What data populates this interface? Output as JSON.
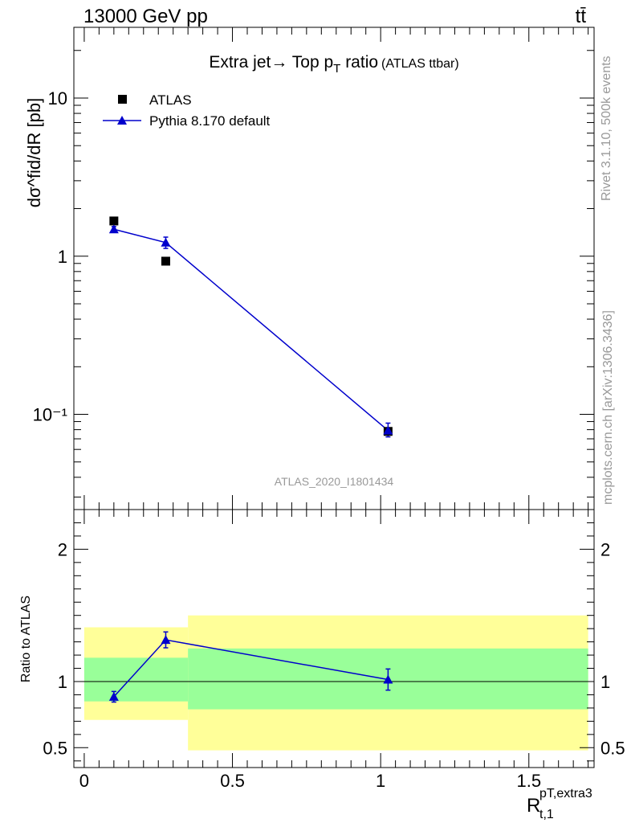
{
  "header": {
    "left_label": "13000 GeV pp",
    "right_label": "tt̄"
  },
  "side_labels": {
    "rivet": "Rivet 3.1.10,  500k events",
    "source": "mcplots.cern.ch [arXiv:1306.3436]"
  },
  "chart_data": [
    {
      "panel": "main",
      "type": "scatter",
      "title": "Extra jet→ Top p_T ratio",
      "title_suffix": "(ATLAS ttbar)",
      "ylabel": "dσ^fid/dR [pb]",
      "yscale": "log",
      "ylim": [
        0.025,
        28
      ],
      "xlim": [
        -0.035,
        1.72
      ],
      "yticks": [
        {
          "value": 0.1,
          "label": "10⁻¹"
        },
        {
          "value": 1,
          "label": "1"
        },
        {
          "value": 10,
          "label": "10"
        }
      ],
      "watermark": "ATLAS_2020_I1801434",
      "legend_position": "top-left",
      "series": [
        {
          "name": "ATLAS",
          "marker": "square",
          "color": "#000000",
          "x": [
            0.1,
            0.275,
            1.025
          ],
          "y": [
            1.67,
            0.93,
            0.078
          ]
        },
        {
          "name": "Pythia 8.170 default",
          "marker": "triangle",
          "color": "#0000cc",
          "x": [
            0.1,
            0.275,
            1.025
          ],
          "y": [
            1.48,
            1.22,
            0.079
          ],
          "err_low": [
            0.06,
            0.1,
            0.007
          ],
          "err_high": [
            0.06,
            0.1,
            0.009
          ]
        }
      ]
    },
    {
      "panel": "ratio",
      "type": "line",
      "ylabel": "Ratio to ATLAS",
      "ylim": [
        0.35,
        2.3
      ],
      "yticks": [
        {
          "value": 0.5,
          "label": "0.5"
        },
        {
          "value": 1,
          "label": "1"
        },
        {
          "value": 2,
          "label": "2"
        }
      ],
      "xlim": [
        -0.035,
        1.72
      ],
      "xticks": [
        {
          "value": 0,
          "label": "0"
        },
        {
          "value": 0.5,
          "label": "0.5"
        },
        {
          "value": 1,
          "label": "1"
        },
        {
          "value": 1.5,
          "label": "1.5"
        }
      ],
      "xlabel": "R_{t,1}^{pT,extra3}",
      "reference": 1,
      "bands": [
        {
          "x0": 0.0,
          "x1": 0.35,
          "yellow": [
            0.71,
            1.41
          ],
          "green": [
            0.85,
            1.18
          ]
        },
        {
          "x0": 0.35,
          "x1": 1.7,
          "yellow": [
            0.48,
            1.5
          ],
          "green": [
            0.79,
            1.25
          ]
        }
      ],
      "series": [
        {
          "name": "Pythia 8.170 default",
          "color": "#0000cc",
          "x": [
            0.1,
            0.275,
            1.025
          ],
          "y": [
            0.885,
            1.315,
            1.015
          ],
          "err_low": [
            0.04,
            0.06,
            0.08
          ],
          "err_high": [
            0.04,
            0.06,
            0.08
          ]
        }
      ]
    }
  ]
}
